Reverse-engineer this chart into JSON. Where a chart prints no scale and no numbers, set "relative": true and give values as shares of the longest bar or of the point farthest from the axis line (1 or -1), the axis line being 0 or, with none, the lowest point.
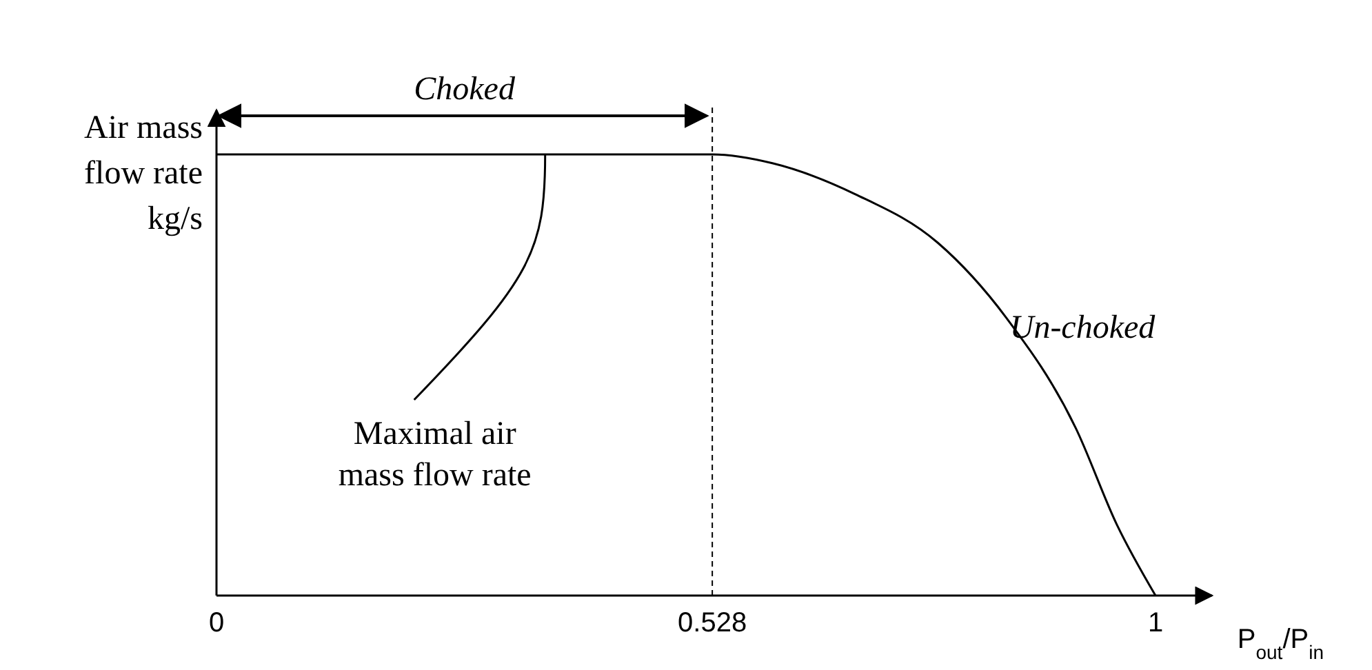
{
  "chart_data": {
    "type": "line",
    "relative": true,
    "xlabel": "P$_{out}$/P$_{in}$",
    "ylabel": "Air mass flow rate kg/s",
    "x": [
      0,
      0.528,
      0.592,
      0.68,
      0.768,
      0.841,
      0.915,
      0.959,
      1
    ],
    "series": [
      {
        "color": "#000000",
        "values": [
          1,
          1,
          0.98,
          0.91,
          0.8,
          0.63,
          0.38,
          0.16,
          0
        ]
      }
    ],
    "xlim": [
      0,
      1.06
    ],
    "xticks": [
      0,
      0.528,
      1
    ],
    "ref_lines": [
      {
        "axis": "x",
        "value": 0.528,
        "line_style": "dashed",
        "color": "#000000"
      }
    ],
    "annotations": [
      "Choked",
      {
        "text": "Maximal air mass flow rate",
        "x": 0.35,
        "y": 1
      },
      "Un-choked"
    ],
    "marker": "none",
    "line_style": "solid",
    "grid": false
  }
}
